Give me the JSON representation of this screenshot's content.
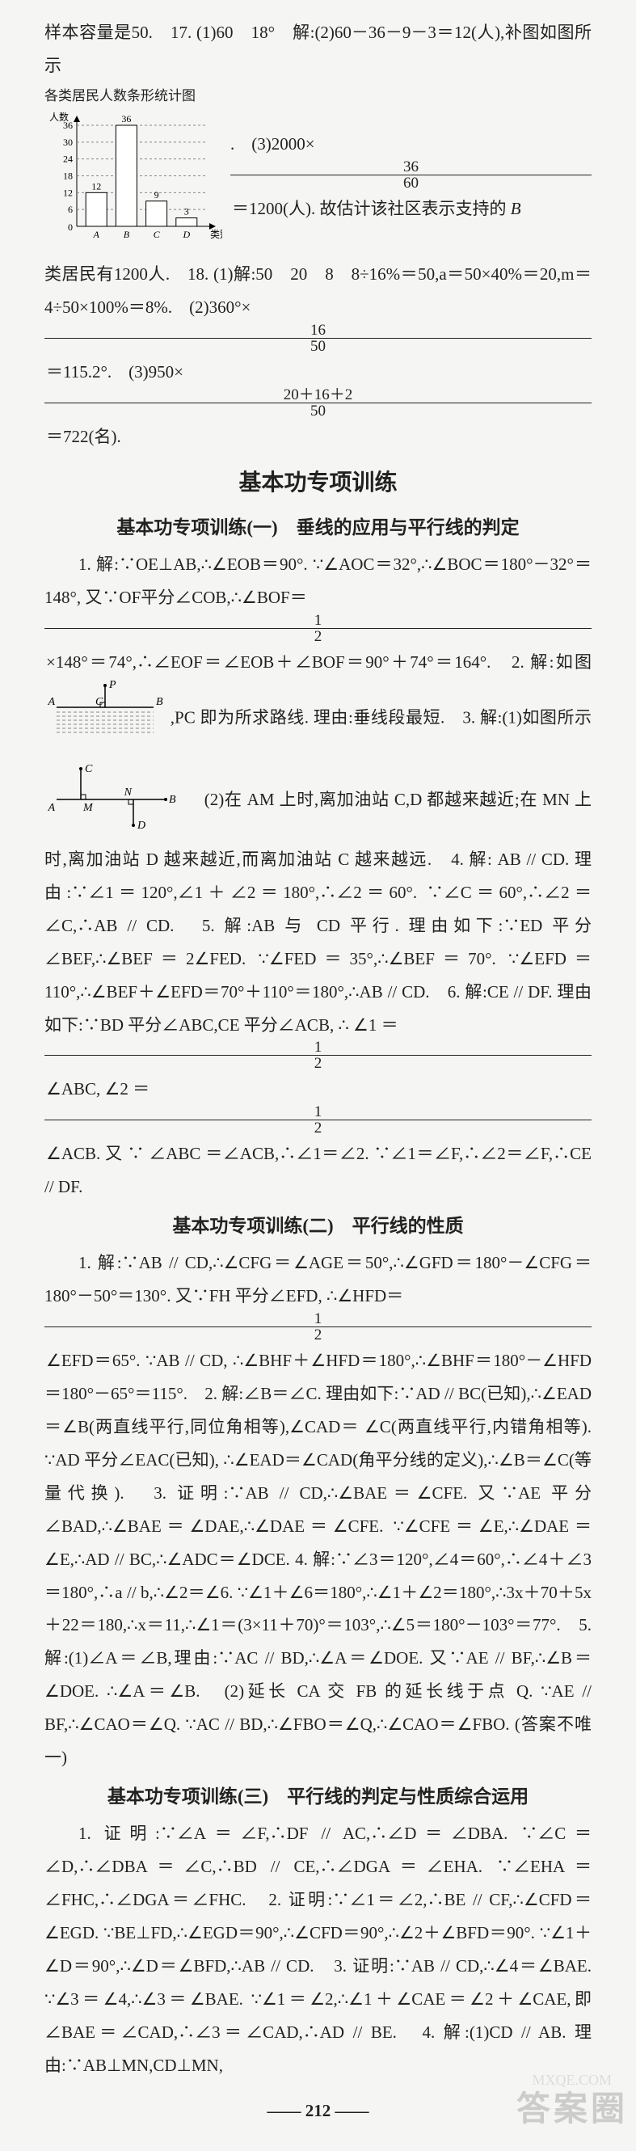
{
  "para1_a": "样本容量是50.　17. (1)60　18°　解:(2)60－36－9－3＝12(人),补图如图所示",
  "chart": {
    "type": "bar",
    "title": "各类居民人数条形统计图",
    "ylabel": "人数",
    "xlabel": "类别",
    "categories": [
      "A",
      "B",
      "C",
      "D"
    ],
    "values": [
      12,
      36,
      9,
      3
    ],
    "ylim": [
      0,
      36
    ],
    "ytick_step": 6,
    "bar_color": "#ffffff",
    "bar_border": "#000000",
    "grid_dash": "3,3",
    "axis_color": "#000000",
    "font_size": 12
  },
  "para1_b_pre": ".　(3)2000×",
  "frac_36_60": {
    "n": "36",
    "d": "60"
  },
  "para1_b_post": "＝1200(人). 故估计该社区表示支持的 ",
  "para1_c": "类居民有1200人.　18. (1)解:50　20　8　8÷16%＝50,a＝50×40%＝20,m＝4÷50×100%＝8%.　(2)360°×",
  "frac_16_50": {
    "n": "16",
    "d": "50"
  },
  "para1_d": "＝115.2°.　(3)950×",
  "frac_20162_50": {
    "n": "20＋16＋2",
    "d": "50"
  },
  "para1_e": "＝722(名).",
  "heading_main": "基本功专项训练",
  "heading_s1": "基本功专项训练(一)　垂线的应用与平行线的判定",
  "s1_a": "1. 解:∵OE⊥AB,∴∠EOB＝90°. ∵∠AOC＝32°,∴∠BOC＝180°－32°＝148°, 又∵OF平分∠COB,∴∠BOF＝",
  "frac_1_2a": {
    "n": "1",
    "d": "2"
  },
  "s1_b": "×148°＝74°,∴∠EOF＝∠EOB＋∠BOF＝90°＋74°＝164°.　2. 解:如图",
  "diag2": {
    "A": "A",
    "B": "B",
    "C": "C",
    "P": "P",
    "line_color": "#000",
    "font_size": 14
  },
  "s1_c": ",PC 即为所求路线. 理由:垂线段最短.　3. 解:(1)如图所示",
  "diag3": {
    "A": "A",
    "M": "M",
    "N": "N",
    "B": "B",
    "C": "C",
    "D": "D",
    "line_color": "#000",
    "font_size": 14
  },
  "s1_d": "　(2)在 AM 上时,离加油站 C,D 都越来越近;在 MN 上时,离加油站 D 越来越近,而离加油站 C 越来越远.　4. 解: AB // CD. 理由:∵∠1＝120°,∠1＋∠2＝180°,∴∠2＝60°. ∵∠C＝60°,∴∠2＝∠C,∴AB // CD.　5. 解:AB 与 CD 平行. 理由如下:∵ED 平分∠BEF,∴∠BEF＝2∠FED. ∵∠FED＝35°,∴∠BEF＝70°. ∵∠EFD＝110°,∴∠BEF＋∠EFD＝70°＋110°＝180°,∴AB // CD.　6. 解:CE // DF. 理由如下:∵BD 平分∠ABC,CE 平分∠ACB, ∴ ∠1 ＝ ",
  "frac_1_2b": {
    "n": "1",
    "d": "2"
  },
  "s1_e": "∠ABC, ∠2 ＝ ",
  "frac_1_2c": {
    "n": "1",
    "d": "2"
  },
  "s1_f": "∠ACB. 又 ∵ ∠ABC ＝∠ACB,∴∠1＝∠2. ∵∠1＝∠F,∴∠2＝∠F,∴CE // DF.",
  "heading_s2": "基本功专项训练(二)　平行线的性质",
  "s2_a": "1. 解:∵AB // CD,∴∠CFG＝∠AGE＝50°,∴∠GFD＝180°－∠CFG＝180°－50°＝130°. 又∵FH 平分∠EFD, ∴∠HFD＝",
  "frac_1_2d": {
    "n": "1",
    "d": "2"
  },
  "s2_b": "∠EFD＝65°. ∵AB // CD, ∴∠BHF＋∠HFD＝180°,∴∠BHF＝180°－∠HFD＝180°－65°＝115°.　2. 解:∠B＝∠C. 理由如下:∵AD // BC(已知),∴∠EAD＝∠B(两直线平行,同位角相等),∠CAD＝ ∠C(两直线平行,内错角相等). ∵AD 平分∠EAC(已知), ∴∠EAD＝∠CAD(角平分线的定义),∴∠B＝∠C(等量代换).　3. 证明:∵AB // CD,∴∠BAE＝∠CFE. 又∵AE 平分∠BAD,∴∠BAE＝∠DAE,∴∠DAE＝∠CFE. ∵∠CFE＝∠E,∴∠DAE＝∠E,∴AD // BC,∴∠ADC＝∠DCE. 4. 解:∵∠3＝120°,∠4＝60°,∴∠4＋∠3＝180°,∴a // b,∴∠2＝∠6. ∵∠1＋∠6＝180°,∴∠1＋∠2＝180°,∴3x＋70＋5x＋22＝180,∴x＝11,∴∠1＝(3×11＋70)°＝103°,∴∠5＝180°－103°＝77°.　5. 解:(1)∠A＝∠B,理由:∵AC // BD,∴∠A＝∠DOE. 又∵AE // BF,∴∠B＝∠DOE. ∴∠A＝∠B.　(2)延长 CA 交 FB 的延长线于点 Q. ∵AE // BF,∴∠CAO＝∠Q. ∵AC // BD,∴∠FBO＝∠Q,∴∠CAO＝∠FBO. (答案不唯一)",
  "heading_s3": "基本功专项训练(三)　平行线的判定与性质综合运用",
  "s3_a": "1. 证明:∵∠A＝∠F,∴DF // AC,∴∠D＝∠DBA. ∵∠C＝∠D,∴∠DBA＝∠C,∴BD // CE,∴∠DGA＝∠EHA. ∵∠EHA＝∠FHC,∴∠DGA＝∠FHC.　2. 证明:∵∠1＝∠2,∴BE // CF,∴∠CFD＝∠EGD. ∵BE⊥FD,∴∠EGD＝90°,∴∠CFD＝90°,∴∠2＋∠BFD＝90°. ∵∠1＋∠D＝90°,∴∠D＝∠BFD,∴AB // CD.　3. 证明:∵AB // CD,∴∠4＝∠BAE. ∵∠3＝∠4,∴∠3＝∠BAE. ∵∠1＝∠2,∴∠1＋∠CAE＝∠2＋∠CAE,即∠BAE＝∠CAD,∴∠3＝∠CAD,∴AD // BE.　4. 解:(1)CD // AB. 理由:∵AB⊥MN,CD⊥MN,",
  "pagenum": "212",
  "watermark": "答案圈",
  "wm_url": "MXQE.COM"
}
